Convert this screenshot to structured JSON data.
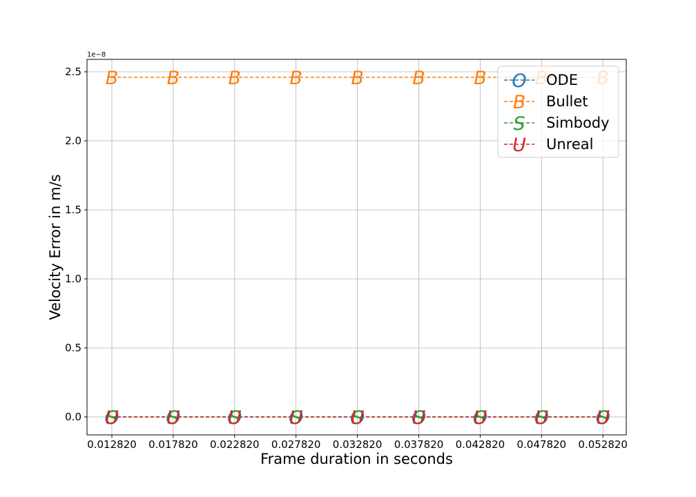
{
  "chart_data": {
    "type": "line",
    "x": [
      "0.012820",
      "0.017820",
      "0.022820",
      "0.027820",
      "0.032820",
      "0.037820",
      "0.042820",
      "0.047820",
      "0.052820"
    ],
    "series": [
      {
        "name": "ODE",
        "marker": "O",
        "color": "#1f77b4",
        "values": [
          0,
          0,
          0,
          0,
          0,
          0,
          0,
          0,
          0
        ]
      },
      {
        "name": "Bullet",
        "marker": "B",
        "color": "#ff7f0e",
        "values": [
          2.46e-08,
          2.46e-08,
          2.46e-08,
          2.46e-08,
          2.46e-08,
          2.46e-08,
          2.46e-08,
          2.46e-08,
          2.46e-08
        ]
      },
      {
        "name": "Simbody",
        "marker": "S",
        "color": "#2ca02c",
        "values": [
          0,
          0,
          0,
          0,
          0,
          0,
          0,
          0,
          0
        ]
      },
      {
        "name": "Unreal",
        "marker": "U",
        "color": "#d62728",
        "values": [
          0,
          0,
          0,
          0,
          0,
          0,
          0,
          0,
          0
        ]
      }
    ],
    "xlabel": "Frame duration in seconds",
    "ylabel": "Velocity Error in m/s",
    "y_offset_label": "1e−8",
    "yticks": [
      "0.0",
      "0.5",
      "1.0",
      "1.5",
      "2.0",
      "2.5"
    ],
    "ylim": [
      -1.3e-09,
      2.59e-08
    ],
    "grid": true,
    "linestyle": "dashed",
    "legend_position": "top-right"
  }
}
